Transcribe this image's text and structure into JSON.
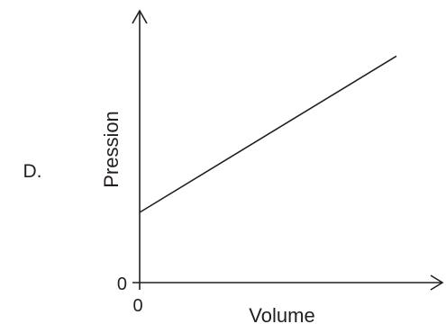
{
  "option_label": "D.",
  "chart_data": {
    "type": "line",
    "title": "",
    "xlabel": "Volume",
    "ylabel": "Pression",
    "x_ticks": [
      "0"
    ],
    "y_ticks": [
      "0"
    ],
    "grid": false,
    "series": [
      {
        "x": [
          0,
          9.5
        ],
        "y": [
          3.1,
          10
        ]
      }
    ],
    "xlim": [
      0,
      11.2
    ],
    "ylim": [
      0,
      12
    ]
  },
  "colors": {
    "ink": "#231f20",
    "background": "#ffffff"
  }
}
